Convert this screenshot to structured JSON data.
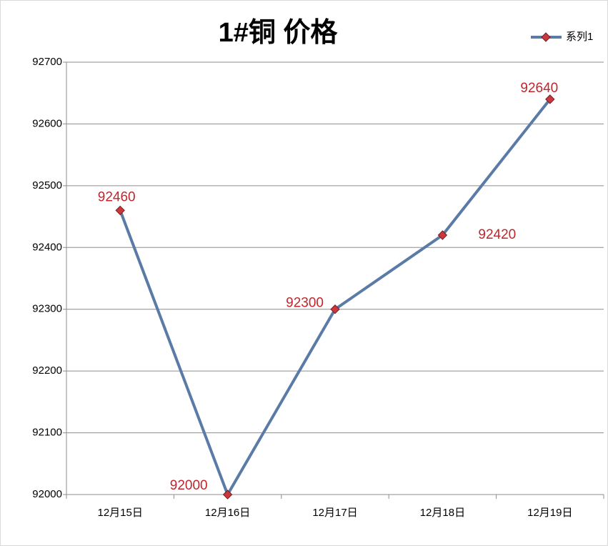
{
  "chart_data": {
    "type": "line",
    "title": "1#铜 价格",
    "categories": [
      "12月15日",
      "12月16日",
      "12月17日",
      "12月18日",
      "12月19日"
    ],
    "series": [
      {
        "name": "系列1",
        "color": "#5b7ba7",
        "marker_color": "#c8383c",
        "values": [
          92460,
          92000,
          92300,
          92420,
          92640
        ]
      }
    ],
    "ylim": [
      92000,
      92700
    ],
    "yticks": [
      92000,
      92100,
      92200,
      92300,
      92400,
      92500,
      92600,
      92700
    ],
    "grid": true,
    "legend": "top-right"
  }
}
